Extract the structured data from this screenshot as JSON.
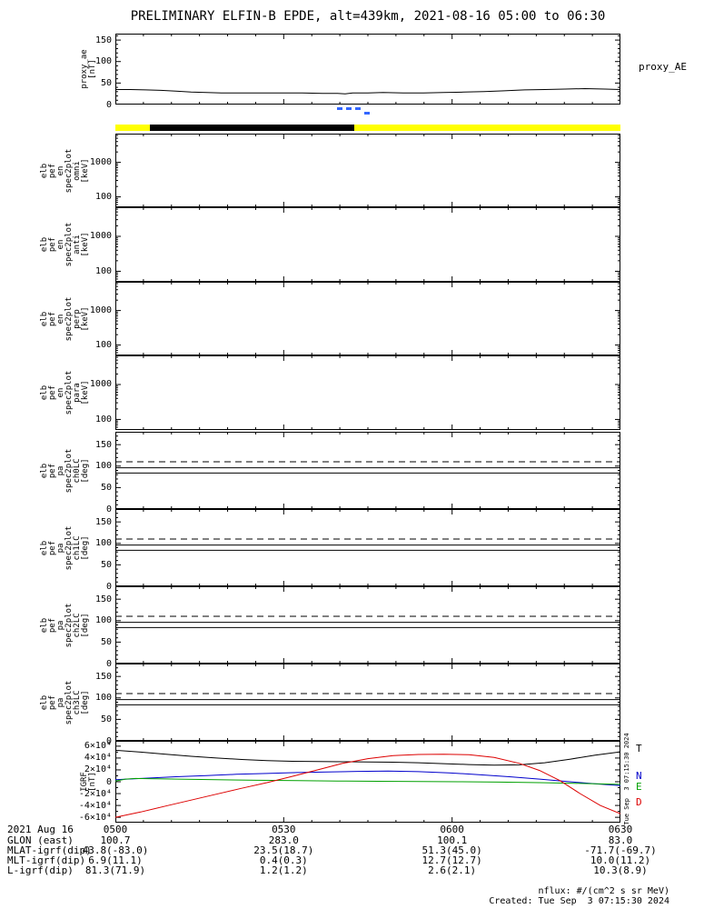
{
  "title": "PRELIMINARY ELFIN-B EPDE, alt=439km, 2021-08-16 05:00 to 06:30",
  "side_timestamp": "Tue Sep  3 07:15:30 2024",
  "footer": {
    "units_note": "nflux: #/(cm^2 s sr MeV)",
    "created": "Created: Tue Sep  3 07:15:30 2024"
  },
  "x_axis": {
    "major": [
      {
        "f": 0,
        "label": "0500"
      },
      {
        "f": 0.3333,
        "label": "0530"
      },
      {
        "f": 0.6667,
        "label": "0600"
      },
      {
        "f": 1,
        "label": "0630"
      }
    ],
    "minor_divisions": 18
  },
  "status_bar": {
    "segments": [
      {
        "start": 0,
        "end": 0.068,
        "color": "#ffff00"
      },
      {
        "start": 0.068,
        "end": 0.473,
        "color": "#000000"
      },
      {
        "start": 0.473,
        "end": 1,
        "color": "#ffff00"
      }
    ]
  },
  "quality_markers": {
    "color": "#3366ff",
    "items": [
      {
        "f": 0.439,
        "row": 0
      },
      {
        "f": 0.457,
        "row": 0
      },
      {
        "f": 0.475,
        "row": 0
      },
      {
        "f": 0.492,
        "row": 1
      }
    ]
  },
  "bottom_table": {
    "date": "2021 Aug 16",
    "rows": [
      {
        "label": "GLON (east)",
        "values": [
          "100.7",
          "283.0",
          "100.1",
          "83.0"
        ]
      },
      {
        "label": "MLAT-igrf(dip)",
        "values": [
          "43.8(-83.0)",
          "23.5(18.7)",
          "51.3(45.0)",
          "-71.7(-69.7)"
        ]
      },
      {
        "label": "MLT-igrf(dip)",
        "values": [
          "6.9(11.1)",
          "0.4(0.3)",
          "12.7(12.7)",
          "10.0(11.2)"
        ]
      },
      {
        "label": "L-igrf(dip)",
        "values": [
          "81.3(71.9)",
          "1.2(1.2)",
          "2.6(2.1)",
          "10.3(8.9)"
        ]
      }
    ]
  },
  "chart_data": [
    {
      "id": "proxy_ae",
      "type": "line",
      "scale": "linear",
      "ylabel_lines": [
        "proxy_ae",
        "[nT]"
      ],
      "right_label": "proxy_AE",
      "ylim": [
        0,
        165
      ],
      "minor_step": 10,
      "yticks": [
        {
          "v": 0,
          "label": "0"
        },
        {
          "v": 50,
          "label": "50"
        },
        {
          "v": 100,
          "label": "100"
        },
        {
          "v": 150,
          "label": "150"
        }
      ],
      "series": [
        {
          "name": "proxy_AE",
          "color": "#000000",
          "x": [
            0,
            0.03,
            0.06,
            0.09,
            0.12,
            0.15,
            0.18,
            0.21,
            0.25,
            0.29,
            0.33,
            0.37,
            0.41,
            0.44,
            0.455,
            0.47,
            0.5,
            0.53,
            0.57,
            0.61,
            0.65,
            0.69,
            0.73,
            0.77,
            0.81,
            0.85,
            0.89,
            0.93,
            0.97,
            1
          ],
          "y": [
            35,
            35,
            34,
            33,
            31,
            29,
            28,
            27,
            27,
            27,
            27,
            27,
            26,
            26,
            25,
            27,
            27,
            28,
            27,
            27,
            28,
            29,
            30,
            32,
            34,
            35,
            36,
            37,
            36,
            35
          ]
        }
      ]
    },
    {
      "id": "en_omni",
      "type": "spectrogram",
      "scale": "log",
      "ylabel_lines": [
        "elb",
        "pef",
        "en",
        "spec2plot",
        "omni",
        "[keV]"
      ],
      "ylim": [
        50,
        6800
      ],
      "yticks": [
        {
          "v": 1000,
          "label": "1000"
        },
        {
          "v": 100,
          "label": "100"
        }
      ],
      "series": []
    },
    {
      "id": "en_anti",
      "type": "spectrogram",
      "scale": "log",
      "ylabel_lines": [
        "elb",
        "pef",
        "en",
        "spec2plot",
        "anti",
        "[keV]"
      ],
      "ylim": [
        50,
        6800
      ],
      "yticks": [
        {
          "v": 1000,
          "label": "1000"
        },
        {
          "v": 100,
          "label": "100"
        }
      ],
      "series": []
    },
    {
      "id": "en_perp",
      "type": "spectrogram",
      "scale": "log",
      "ylabel_lines": [
        "elb",
        "pef",
        "en",
        "spec2plot",
        "perp",
        "[keV]"
      ],
      "ylim": [
        50,
        6800
      ],
      "yticks": [
        {
          "v": 1000,
          "label": "1000"
        },
        {
          "v": 100,
          "label": "100"
        }
      ],
      "series": []
    },
    {
      "id": "en_para",
      "type": "spectrogram",
      "scale": "log",
      "ylabel_lines": [
        "elb",
        "pef",
        "en",
        "spec2plot",
        "para",
        "[keV]"
      ],
      "ylim": [
        50,
        6800
      ],
      "yticks": [
        {
          "v": 1000,
          "label": "1000"
        },
        {
          "v": 100,
          "label": "100"
        }
      ],
      "series": []
    },
    {
      "id": "pa_ch0",
      "type": "line",
      "scale": "linear",
      "ylabel_lines": [
        "elb",
        "pef",
        "pa",
        "spec2plot",
        "ch0LC",
        "[deg]"
      ],
      "ylim": [
        0,
        180
      ],
      "minor_step": 10,
      "yticks": [
        {
          "v": 0,
          "label": "0"
        },
        {
          "v": 50,
          "label": "50"
        },
        {
          "v": 100,
          "label": "100"
        },
        {
          "v": 150,
          "label": "150"
        }
      ],
      "lines": [
        {
          "v": 110,
          "style": "dashed"
        },
        {
          "v": 96,
          "style": "solid"
        },
        {
          "v": 84,
          "style": "solid"
        }
      ],
      "series": []
    },
    {
      "id": "pa_ch1",
      "type": "line",
      "scale": "linear",
      "ylabel_lines": [
        "elb",
        "pef",
        "pa",
        "spec2plot",
        "ch1LC",
        "[deg]"
      ],
      "ylim": [
        0,
        180
      ],
      "minor_step": 10,
      "yticks": [
        {
          "v": 0,
          "label": "0"
        },
        {
          "v": 50,
          "label": "50"
        },
        {
          "v": 100,
          "label": "100"
        },
        {
          "v": 150,
          "label": "150"
        }
      ],
      "lines": [
        {
          "v": 110,
          "style": "dashed"
        },
        {
          "v": 96,
          "style": "solid"
        },
        {
          "v": 84,
          "style": "solid"
        }
      ],
      "series": []
    },
    {
      "id": "pa_ch2",
      "type": "line",
      "scale": "linear",
      "ylabel_lines": [
        "elb",
        "pef",
        "pa",
        "spec2plot",
        "ch2LC",
        "[deg]"
      ],
      "ylim": [
        0,
        180
      ],
      "minor_step": 10,
      "yticks": [
        {
          "v": 0,
          "label": "0"
        },
        {
          "v": 50,
          "label": "50"
        },
        {
          "v": 100,
          "label": "100"
        },
        {
          "v": 150,
          "label": "150"
        }
      ],
      "lines": [
        {
          "v": 110,
          "style": "dashed"
        },
        {
          "v": 96,
          "style": "solid"
        },
        {
          "v": 84,
          "style": "solid"
        }
      ],
      "series": []
    },
    {
      "id": "pa_ch3",
      "type": "line",
      "scale": "linear",
      "ylabel_lines": [
        "elb",
        "pef",
        "pa",
        "spec2plot",
        "ch3LC",
        "[deg]"
      ],
      "ylim": [
        0,
        180
      ],
      "minor_step": 10,
      "yticks": [
        {
          "v": 0,
          "label": "0"
        },
        {
          "v": 50,
          "label": "50"
        },
        {
          "v": 100,
          "label": "100"
        },
        {
          "v": 150,
          "label": "150"
        }
      ],
      "lines": [
        {
          "v": 110,
          "style": "dashed"
        },
        {
          "v": 96,
          "style": "solid"
        },
        {
          "v": 84,
          "style": "solid"
        }
      ],
      "series": []
    },
    {
      "id": "igrf",
      "type": "line",
      "scale": "linear",
      "ylabel_lines": [
        "IGRF",
        "[nT]"
      ],
      "ylim": [
        -69000,
        69000
      ],
      "minor_step": 10000,
      "yticks": [
        {
          "v": 60000,
          "label": "6×10⁴"
        },
        {
          "v": 40000,
          "label": "4×10⁴"
        },
        {
          "v": 20000,
          "label": "2×10⁴"
        },
        {
          "v": 0,
          "label": "0"
        },
        {
          "v": -20000,
          "label": "-2×10⁴"
        },
        {
          "v": -40000,
          "label": "-4×10⁴"
        },
        {
          "v": -60000,
          "label": "-6×10⁴"
        }
      ],
      "series": [
        {
          "name": "T",
          "color": "#000000",
          "right_label_v": 57000,
          "x": [
            0,
            0.05,
            0.1,
            0.15,
            0.2,
            0.25,
            0.3,
            0.35,
            0.4,
            0.45,
            0.5,
            0.55,
            0.6,
            0.65,
            0.7,
            0.75,
            0.8,
            0.85,
            0.9,
            0.95,
            1
          ],
          "y": [
            53000,
            50000,
            46500,
            43000,
            40000,
            37500,
            35500,
            34500,
            34000,
            33800,
            33500,
            33000,
            32000,
            30500,
            29000,
            28000,
            28500,
            32000,
            38000,
            45000,
            50500
          ]
        },
        {
          "name": "N",
          "color": "#0000cc",
          "right_label_v": 11000,
          "x": [
            0,
            0.06,
            0.12,
            0.18,
            0.24,
            0.3,
            0.36,
            0.42,
            0.48,
            0.54,
            0.6,
            0.66,
            0.72,
            0.78,
            0.84,
            0.9,
            0.95,
            1
          ],
          "y": [
            3500,
            6000,
            8500,
            10500,
            12500,
            14000,
            15500,
            16500,
            17500,
            18000,
            17000,
            15000,
            12000,
            8500,
            4500,
            0,
            -3500,
            -6500
          ]
        },
        {
          "name": "E",
          "color": "#00a000",
          "right_label_v": -7000,
          "x": [
            0,
            0.02,
            0.04,
            0.08,
            0.14,
            0.2,
            0.28,
            0.36,
            0.44,
            0.52,
            0.6,
            0.68,
            0.76,
            0.84,
            0.9,
            0.95,
            1
          ],
          "y": [
            1000,
            4500,
            5500,
            5000,
            4200,
            3500,
            2500,
            1800,
            1200,
            800,
            400,
            0,
            -600,
            -1500,
            -2500,
            -3500,
            -4500
          ]
        },
        {
          "name": "D",
          "color": "#dd0000",
          "right_label_v": -33000,
          "x": [
            0,
            0.05,
            0.1,
            0.15,
            0.2,
            0.25,
            0.3,
            0.35,
            0.4,
            0.45,
            0.5,
            0.55,
            0.6,
            0.65,
            0.7,
            0.75,
            0.8,
            0.84,
            0.88,
            0.92,
            0.96,
            1
          ],
          "y": [
            -60000,
            -51000,
            -41000,
            -31000,
            -21000,
            -11000,
            -1500,
            9000,
            20000,
            31000,
            39000,
            44000,
            46000,
            46500,
            45500,
            41000,
            31000,
            19000,
            2000,
            -20000,
            -40000,
            -54000
          ]
        }
      ]
    }
  ]
}
